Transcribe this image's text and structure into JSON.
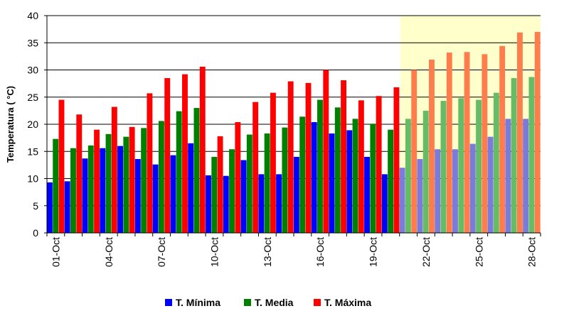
{
  "chart_data": {
    "type": "bar",
    "ylabel": "Temperatura ( °C)",
    "ylim": [
      0,
      40
    ],
    "yticks": [
      0,
      5,
      10,
      15,
      20,
      25,
      30,
      35,
      40
    ],
    "grid": true,
    "legend_position": "bottom",
    "forecast_highlight": {
      "from_category": "21-Oct",
      "to_category": "28-Oct",
      "color": "#ffffcc"
    },
    "categories": [
      "01-Oct",
      "02-Oct",
      "03-Oct",
      "04-Oct",
      "05-Oct",
      "06-Oct",
      "07-Oct",
      "08-Oct",
      "09-Oct",
      "10-Oct",
      "11-Oct",
      "12-Oct",
      "13-Oct",
      "14-Oct",
      "15-Oct",
      "16-Oct",
      "17-Oct",
      "18-Oct",
      "19-Oct",
      "20-Oct",
      "21-Oct",
      "22-Oct",
      "23-Oct",
      "24-Oct",
      "25-Oct",
      "26-Oct",
      "27-Oct",
      "28-Oct"
    ],
    "tick_labels": [
      "01-Oct",
      "04-Oct",
      "07-Oct",
      "10-Oct",
      "13-Oct",
      "16-Oct",
      "19-Oct",
      "22-Oct",
      "25-Oct",
      "28-Oct"
    ],
    "series": [
      {
        "name": "T. Mínima",
        "color": "#0000ff",
        "forecast_color": "#7b7bdb",
        "values": [
          9.3,
          9.5,
          13.7,
          15.6,
          16.0,
          13.6,
          12.6,
          14.3,
          16.5,
          10.6,
          10.5,
          13.4,
          10.8,
          10.8,
          14.0,
          20.4,
          18.3,
          18.9,
          14.0,
          10.8,
          12.0,
          13.6,
          15.4,
          15.4,
          16.4,
          17.7,
          21.0,
          21.0
        ]
      },
      {
        "name": "T. Media",
        "color": "#008000",
        "forecast_color": "#66bb66",
        "values": [
          17.3,
          15.6,
          16.1,
          18.2,
          17.7,
          19.3,
          20.6,
          22.4,
          23.0,
          14.0,
          15.4,
          18.1,
          18.3,
          19.4,
          21.4,
          24.5,
          23.1,
          21.0,
          20.1,
          19.0,
          21.0,
          22.5,
          24.3,
          24.8,
          24.5,
          25.8,
          28.5,
          28.7
        ]
      },
      {
        "name": "T. Máxima",
        "color": "#ff0000",
        "forecast_color": "#ff7c4c",
        "values": [
          24.5,
          21.8,
          19.0,
          23.2,
          19.5,
          25.7,
          28.5,
          29.2,
          30.6,
          17.8,
          20.4,
          24.1,
          25.8,
          27.9,
          27.6,
          30.0,
          28.1,
          24.4,
          25.2,
          26.8,
          30.0,
          31.9,
          33.2,
          33.3,
          32.9,
          34.4,
          36.9,
          37.0
        ]
      }
    ]
  }
}
